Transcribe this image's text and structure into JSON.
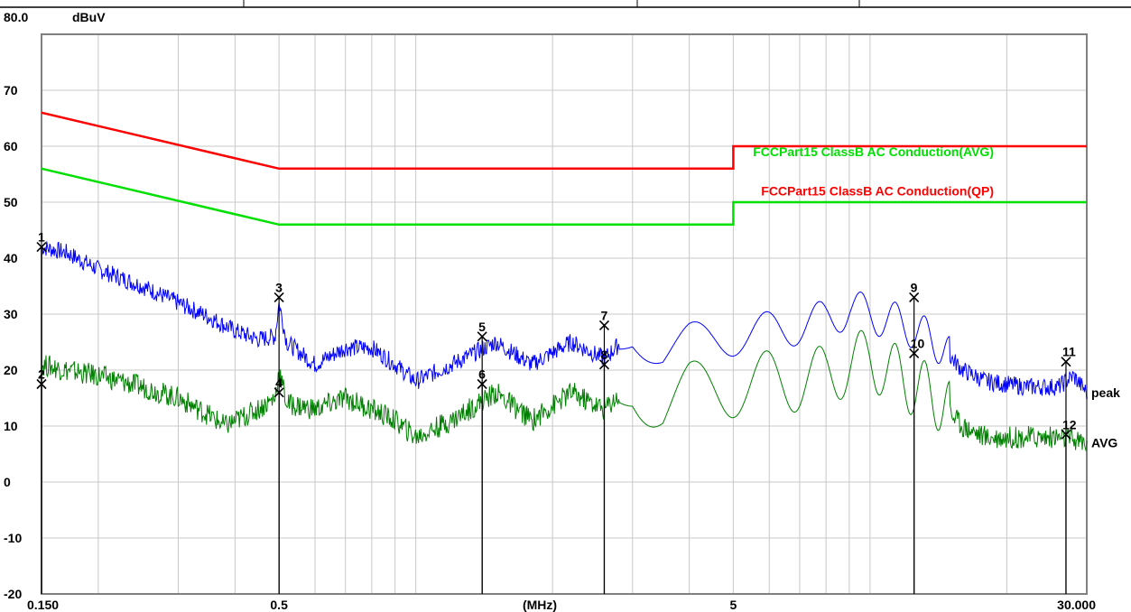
{
  "chart_data": {
    "type": "line",
    "y_top_label": "80.0",
    "y_unit": "dBuV",
    "x_unit": "(MHz)",
    "x_scale": "log",
    "xlim": [
      0.15,
      30.0
    ],
    "ylim": [
      -20,
      80
    ],
    "grid": true,
    "y_ticks": [
      "70",
      "60",
      "50",
      "40",
      "30",
      "20",
      "10",
      "0",
      "-10",
      "-20"
    ],
    "x_ticks": [
      {
        "value": 0.15,
        "label": "0.150"
      },
      {
        "value": 0.5,
        "label": "0.5"
      },
      {
        "value": 5,
        "label": "5"
      },
      {
        "value": 30,
        "label": "30.000"
      }
    ],
    "limits": [
      {
        "name": "FCCPart15 ClassB AC Conduction(QP)",
        "color": "#ff0000",
        "points": [
          [
            0.15,
            66
          ],
          [
            0.5,
            56
          ],
          [
            5,
            56
          ],
          [
            5,
            60
          ],
          [
            30,
            60
          ]
        ]
      },
      {
        "name": "FCCPart15 ClassB AC Conduction(AVG)",
        "color": "#00e000",
        "points": [
          [
            0.15,
            56
          ],
          [
            0.5,
            46
          ],
          [
            5,
            46
          ],
          [
            5,
            50
          ],
          [
            30,
            50
          ]
        ]
      }
    ],
    "series": [
      {
        "name": "peak",
        "color": "#0000ff",
        "points": [
          [
            0.15,
            42
          ],
          [
            0.17,
            41
          ],
          [
            0.2,
            38
          ],
          [
            0.25,
            35
          ],
          [
            0.3,
            32
          ],
          [
            0.35,
            29.5
          ],
          [
            0.4,
            27
          ],
          [
            0.45,
            25.5
          ],
          [
            0.49,
            26
          ],
          [
            0.5,
            32
          ],
          [
            0.52,
            25
          ],
          [
            0.6,
            21
          ],
          [
            0.7,
            24
          ],
          [
            0.8,
            24
          ],
          [
            0.9,
            21
          ],
          [
            1.0,
            18
          ],
          [
            1.2,
            21
          ],
          [
            1.5,
            25
          ],
          [
            1.8,
            21
          ],
          [
            2.2,
            25
          ],
          [
            2.6,
            22
          ],
          [
            3.0,
            27
          ],
          [
            3.5,
            23
          ],
          [
            4.0,
            25
          ],
          [
            5.0,
            26
          ],
          [
            6.0,
            27
          ],
          [
            7.0,
            28
          ],
          [
            8.0,
            29
          ],
          [
            9.0,
            31
          ],
          [
            10.0,
            30
          ],
          [
            11.0,
            29
          ],
          [
            12.0,
            28
          ],
          [
            14.0,
            25
          ],
          [
            16.0,
            20
          ],
          [
            18.0,
            18
          ],
          [
            22.0,
            17
          ],
          [
            26.0,
            17
          ],
          [
            28.0,
            19
          ],
          [
            30.0,
            16
          ]
        ]
      },
      {
        "name": "AVG",
        "color": "#008000",
        "points": [
          [
            0.15,
            21
          ],
          [
            0.17,
            20
          ],
          [
            0.2,
            19
          ],
          [
            0.25,
            17
          ],
          [
            0.3,
            15
          ],
          [
            0.35,
            12
          ],
          [
            0.38,
            10
          ],
          [
            0.45,
            13
          ],
          [
            0.49,
            15
          ],
          [
            0.5,
            20
          ],
          [
            0.52,
            14
          ],
          [
            0.6,
            13
          ],
          [
            0.7,
            15
          ],
          [
            0.8,
            13
          ],
          [
            0.9,
            11
          ],
          [
            1.0,
            8
          ],
          [
            1.2,
            11
          ],
          [
            1.5,
            16
          ],
          [
            1.8,
            11
          ],
          [
            2.2,
            16
          ],
          [
            2.6,
            13
          ],
          [
            3.0,
            18
          ],
          [
            3.5,
            13
          ],
          [
            4.0,
            16
          ],
          [
            5.0,
            17
          ],
          [
            6.0,
            18
          ],
          [
            7.0,
            18
          ],
          [
            8.0,
            19
          ],
          [
            9.0,
            21
          ],
          [
            10.0,
            22
          ],
          [
            11.0,
            20
          ],
          [
            12.0,
            18
          ],
          [
            14.0,
            15
          ],
          [
            16.0,
            10
          ],
          [
            18.0,
            8
          ],
          [
            22.0,
            8
          ],
          [
            26.0,
            8
          ],
          [
            30.0,
            7
          ]
        ]
      }
    ],
    "legend_labels": [
      {
        "text": "peak",
        "color": "#000000",
        "y": 16
      },
      {
        "text": "AVG",
        "color": "#008000",
        "y": 7
      }
    ],
    "markers": [
      {
        "label": "1",
        "x": 0.15,
        "y": 42.0
      },
      {
        "label": "2",
        "x": 0.15,
        "y": 17.5
      },
      {
        "label": "3",
        "x": 0.5,
        "y": 33.0
      },
      {
        "label": "4",
        "x": 0.5,
        "y": 16.0
      },
      {
        "label": "5",
        "x": 1.4,
        "y": 26.0
      },
      {
        "label": "6",
        "x": 1.4,
        "y": 17.5
      },
      {
        "label": "7",
        "x": 2.6,
        "y": 28.0
      },
      {
        "label": "8",
        "x": 2.6,
        "y": 21.0
      },
      {
        "label": "9",
        "x": 12.5,
        "y": 33.0
      },
      {
        "label": "10",
        "x": 12.5,
        "y": 23.0
      },
      {
        "label": "11",
        "x": 27.0,
        "y": 21.5
      },
      {
        "label": "12",
        "x": 27.0,
        "y": 8.5
      }
    ]
  }
}
